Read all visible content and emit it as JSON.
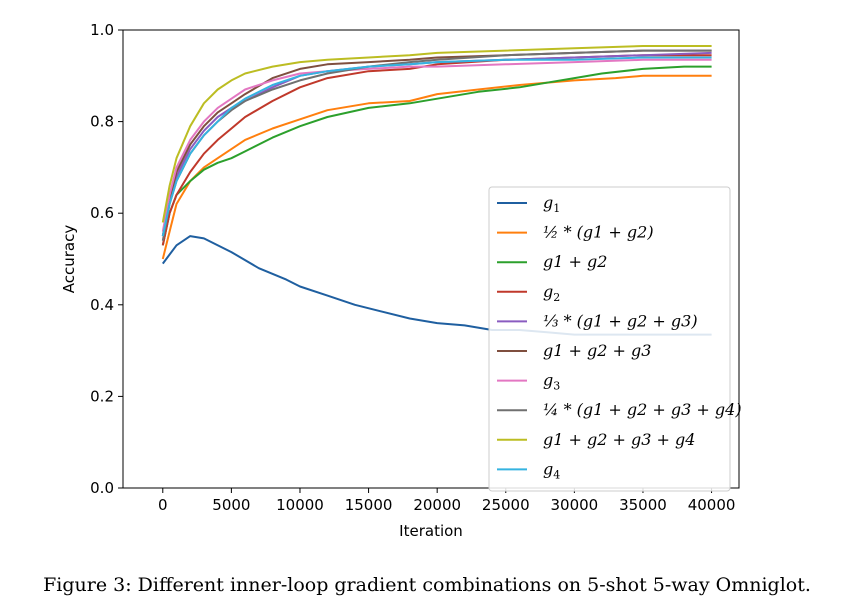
{
  "caption": "Figure 3: Different inner-loop gradient combinations on 5-shot 5-way Omniglot.",
  "chart_data": {
    "type": "line",
    "xlabel": "Iteration",
    "ylabel": "Accuracy",
    "xlim": [
      -2900,
      42000
    ],
    "ylim": [
      0.0,
      1.0
    ],
    "xticks": [
      0,
      5000,
      10000,
      15000,
      20000,
      25000,
      30000,
      35000,
      40000
    ],
    "yticks": [
      0.0,
      0.2,
      0.4,
      0.6,
      0.8,
      1.0
    ],
    "xtick_labels": [
      "0",
      "5000",
      "10000",
      "15000",
      "20000",
      "25000",
      "30000",
      "35000",
      "40000"
    ],
    "ytick_labels": [
      "0.0",
      "0.2",
      "0.4",
      "0.6",
      "0.8",
      "1.0"
    ],
    "grid": false,
    "legend_position": "lower-right",
    "series": [
      {
        "name": "g1",
        "label_text": "g",
        "label_sub": "1",
        "color": "#1f5fa0",
        "x": [
          0,
          1000,
          2000,
          3000,
          5000,
          7000,
          9000,
          10000,
          12000,
          14000,
          16000,
          18000,
          20000,
          22000,
          24000,
          26000,
          28000,
          30000,
          32000,
          34000,
          36000,
          38000,
          40000
        ],
        "y": [
          0.49,
          0.53,
          0.55,
          0.545,
          0.515,
          0.48,
          0.455,
          0.44,
          0.42,
          0.4,
          0.385,
          0.37,
          0.36,
          0.355,
          0.345,
          0.345,
          0.34,
          0.335,
          0.335,
          0.335,
          0.335,
          0.335,
          0.335
        ]
      },
      {
        "name": "1/2 * (g1 + g2)",
        "label_text": "½ * (g1 + g2)",
        "color": "#ff7f0e",
        "x": [
          0,
          500,
          1000,
          2000,
          3000,
          4000,
          5000,
          6000,
          8000,
          10000,
          12000,
          15000,
          18000,
          20000,
          23000,
          26000,
          30000,
          33000,
          35000,
          38000,
          40000
        ],
        "y": [
          0.5,
          0.56,
          0.62,
          0.67,
          0.7,
          0.72,
          0.74,
          0.76,
          0.785,
          0.805,
          0.825,
          0.84,
          0.845,
          0.86,
          0.87,
          0.88,
          0.89,
          0.895,
          0.9,
          0.9,
          0.9
        ]
      },
      {
        "name": "g1 + g2",
        "label_text": "g1 + g2",
        "color": "#2ca02c",
        "x": [
          0,
          500,
          1000,
          2000,
          3000,
          4000,
          5000,
          6000,
          8000,
          10000,
          12000,
          15000,
          18000,
          20000,
          23000,
          26000,
          28000,
          30000,
          32000,
          35000,
          38000,
          40000
        ],
        "y": [
          0.53,
          0.6,
          0.64,
          0.67,
          0.695,
          0.71,
          0.72,
          0.735,
          0.765,
          0.79,
          0.81,
          0.83,
          0.84,
          0.85,
          0.865,
          0.875,
          0.885,
          0.895,
          0.905,
          0.915,
          0.92,
          0.92
        ]
      },
      {
        "name": "g2",
        "label_text": "g",
        "label_sub": "2",
        "color": "#c0392b",
        "x": [
          0,
          500,
          1000,
          2000,
          3000,
          4000,
          5000,
          6000,
          8000,
          10000,
          12000,
          15000,
          18000,
          20000,
          25000,
          30000,
          35000,
          40000
        ],
        "y": [
          0.53,
          0.6,
          0.64,
          0.69,
          0.73,
          0.76,
          0.785,
          0.81,
          0.845,
          0.875,
          0.895,
          0.91,
          0.915,
          0.925,
          0.935,
          0.94,
          0.945,
          0.945
        ]
      },
      {
        "name": "1/3 * (g1 + g2 + g3)",
        "label_text": "⅓ * (g1 + g2 + g3)",
        "color": "#8a5cc0",
        "x": [
          0,
          500,
          1000,
          2000,
          3000,
          4000,
          5000,
          6000,
          8000,
          10000,
          12000,
          15000,
          18000,
          20000,
          25000,
          30000,
          35000,
          40000
        ],
        "y": [
          0.55,
          0.63,
          0.68,
          0.74,
          0.78,
          0.81,
          0.83,
          0.845,
          0.875,
          0.9,
          0.91,
          0.92,
          0.925,
          0.93,
          0.935,
          0.94,
          0.945,
          0.95
        ]
      },
      {
        "name": "g1 + g2 + g3",
        "label_text": "g1 + g2 + g3",
        "color": "#7f4f3f",
        "x": [
          0,
          500,
          1000,
          2000,
          3000,
          4000,
          5000,
          6000,
          8000,
          10000,
          12000,
          15000,
          18000,
          20000,
          25000,
          30000,
          35000,
          40000
        ],
        "y": [
          0.55,
          0.63,
          0.69,
          0.75,
          0.79,
          0.82,
          0.84,
          0.86,
          0.895,
          0.915,
          0.925,
          0.93,
          0.935,
          0.94,
          0.945,
          0.95,
          0.955,
          0.955
        ]
      },
      {
        "name": "g3",
        "label_text": "g",
        "label_sub": "3",
        "color": "#e377c2",
        "x": [
          0,
          500,
          1000,
          2000,
          3000,
          4000,
          5000,
          6000,
          8000,
          10000,
          12000,
          15000,
          18000,
          20000,
          25000,
          30000,
          35000,
          40000
        ],
        "y": [
          0.56,
          0.64,
          0.7,
          0.76,
          0.8,
          0.83,
          0.85,
          0.87,
          0.89,
          0.905,
          0.91,
          0.915,
          0.92,
          0.92,
          0.925,
          0.93,
          0.935,
          0.935
        ]
      },
      {
        "name": "1/4 * (g1 + g2 + g3 + g4)",
        "label_text": "¼ * (g1 + g2 + g3 + g4)",
        "color": "#707070",
        "x": [
          0,
          500,
          1000,
          2000,
          3000,
          4000,
          5000,
          6000,
          8000,
          10000,
          12000,
          15000,
          18000,
          20000,
          25000,
          30000,
          35000,
          40000
        ],
        "y": [
          0.54,
          0.62,
          0.67,
          0.73,
          0.77,
          0.8,
          0.825,
          0.845,
          0.87,
          0.89,
          0.905,
          0.92,
          0.93,
          0.935,
          0.945,
          0.95,
          0.955,
          0.955
        ]
      },
      {
        "name": "g1 + g2 + g3 + g4",
        "label_text": "g1 + g2 + g3 + g4",
        "color": "#bcbd22",
        "x": [
          0,
          500,
          1000,
          2000,
          3000,
          4000,
          5000,
          6000,
          8000,
          10000,
          12000,
          15000,
          18000,
          20000,
          25000,
          30000,
          35000,
          40000
        ],
        "y": [
          0.58,
          0.66,
          0.72,
          0.79,
          0.84,
          0.87,
          0.89,
          0.905,
          0.92,
          0.93,
          0.935,
          0.94,
          0.945,
          0.95,
          0.955,
          0.96,
          0.965,
          0.965
        ]
      },
      {
        "name": "g4",
        "label_text": "g",
        "label_sub": "4",
        "color": "#35b3e0",
        "x": [
          0,
          500,
          1000,
          2000,
          3000,
          4000,
          5000,
          6000,
          8000,
          10000,
          12000,
          15000,
          18000,
          20000,
          25000,
          30000,
          35000,
          40000
        ],
        "y": [
          0.55,
          0.62,
          0.67,
          0.73,
          0.77,
          0.8,
          0.83,
          0.85,
          0.88,
          0.9,
          0.91,
          0.92,
          0.925,
          0.93,
          0.935,
          0.935,
          0.94,
          0.94
        ]
      }
    ]
  }
}
